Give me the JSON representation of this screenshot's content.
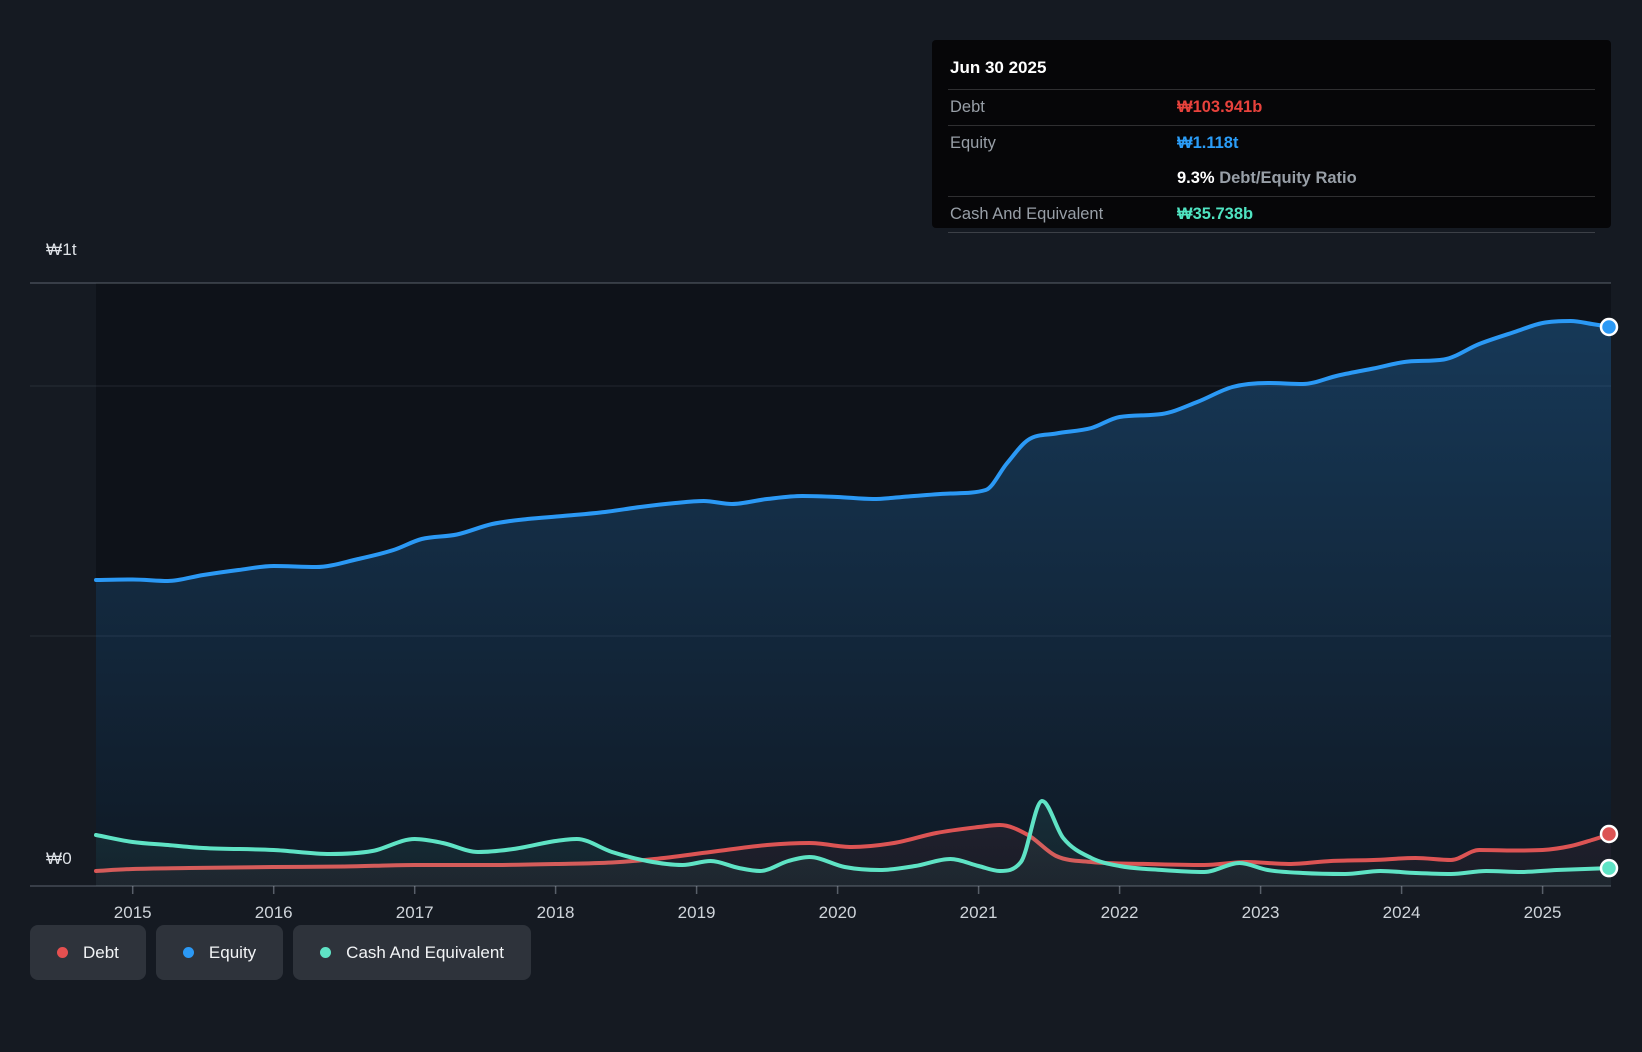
{
  "y_axis": {
    "labels": [
      {
        "text": "₩1t"
      },
      {
        "text": "₩0"
      }
    ]
  },
  "tooltip": {
    "title": "Jun 30 2025",
    "rows": {
      "debt": {
        "label": "Debt",
        "value": "₩103.941b",
        "value_color": "#e8423c"
      },
      "equity": {
        "label": "Equity",
        "value": "₩1.118t",
        "value_color": "#2b9df8"
      },
      "ratio": {
        "bold": "9.3%",
        "rest": " Debt/Equity Ratio"
      },
      "cash": {
        "label": "Cash And Equivalent",
        "value": "₩35.738b",
        "value_color": "#4fe3c1"
      }
    }
  },
  "legend": [
    {
      "label": "Debt",
      "color": "#e55050"
    },
    {
      "label": "Equity",
      "color": "#2b99f5"
    },
    {
      "label": "Cash And Equivalent",
      "color": "#5fe3c5"
    }
  ],
  "chart_data": {
    "type": "area",
    "title": "Debt to Equity history (KRW)",
    "x_tick_labels": [
      "2015",
      "2016",
      "2017",
      "2018",
      "2019",
      "2020",
      "2021",
      "2022",
      "2023",
      "2024",
      "2025"
    ],
    "x_tick_years": [
      2015,
      2016,
      2017,
      2018,
      2019,
      2020,
      2021,
      2022,
      2023,
      2024,
      2025
    ],
    "x_range_years": [
      2014.74,
      2025.485
    ],
    "ylim_trillions": [
      0,
      1.206
    ],
    "gridline_values_trillions": [
      0.5,
      1.0
    ],
    "grid_on": true,
    "legend_position": "bottom-left",
    "units": "KRW trillions",
    "series": [
      {
        "name": "Equity",
        "color": "#2b99f5",
        "points": [
          [
            2014.74,
            0.612
          ],
          [
            2015.0,
            0.613
          ],
          [
            2015.25,
            0.61
          ],
          [
            2015.5,
            0.622
          ],
          [
            2015.75,
            0.632
          ],
          [
            2016.0,
            0.64
          ],
          [
            2016.3,
            0.638
          ],
          [
            2016.6,
            0.654
          ],
          [
            2016.85,
            0.672
          ],
          [
            2017.05,
            0.694
          ],
          [
            2017.3,
            0.703
          ],
          [
            2017.55,
            0.724
          ],
          [
            2017.8,
            0.734
          ],
          [
            2018.05,
            0.74
          ],
          [
            2018.35,
            0.748
          ],
          [
            2018.6,
            0.758
          ],
          [
            2018.85,
            0.766
          ],
          [
            2019.05,
            0.77
          ],
          [
            2019.25,
            0.764
          ],
          [
            2019.5,
            0.774
          ],
          [
            2019.75,
            0.78
          ],
          [
            2020.0,
            0.778
          ],
          [
            2020.25,
            0.774
          ],
          [
            2020.5,
            0.779
          ],
          [
            2020.8,
            0.785
          ],
          [
            2021.05,
            0.792
          ],
          [
            2021.2,
            0.845
          ],
          [
            2021.35,
            0.892
          ],
          [
            2021.55,
            0.905
          ],
          [
            2021.8,
            0.916
          ],
          [
            2022.0,
            0.938
          ],
          [
            2022.3,
            0.944
          ],
          [
            2022.55,
            0.968
          ],
          [
            2022.8,
            0.998
          ],
          [
            2023.05,
            1.006
          ],
          [
            2023.3,
            1.004
          ],
          [
            2023.55,
            1.021
          ],
          [
            2023.8,
            1.035
          ],
          [
            2024.05,
            1.049
          ],
          [
            2024.3,
            1.053
          ],
          [
            2024.55,
            1.084
          ],
          [
            2024.8,
            1.108
          ],
          [
            2025.0,
            1.126
          ],
          [
            2025.2,
            1.13
          ],
          [
            2025.35,
            1.124
          ],
          [
            2025.485,
            1.118
          ]
        ],
        "end_value_label": "₩1.118t"
      },
      {
        "name": "Debt",
        "color": "#dc5454",
        "points": [
          [
            2014.74,
            0.03
          ],
          [
            2015.0,
            0.034
          ],
          [
            2015.4,
            0.036
          ],
          [
            2016.0,
            0.038
          ],
          [
            2016.5,
            0.039
          ],
          [
            2017.0,
            0.042
          ],
          [
            2017.5,
            0.042
          ],
          [
            2018.0,
            0.044
          ],
          [
            2018.4,
            0.047
          ],
          [
            2018.7,
            0.054
          ],
          [
            2019.1,
            0.068
          ],
          [
            2019.5,
            0.082
          ],
          [
            2019.8,
            0.086
          ],
          [
            2020.1,
            0.078
          ],
          [
            2020.4,
            0.086
          ],
          [
            2020.7,
            0.106
          ],
          [
            2021.0,
            0.118
          ],
          [
            2021.15,
            0.122
          ],
          [
            2021.35,
            0.102
          ],
          [
            2021.55,
            0.06
          ],
          [
            2021.8,
            0.048
          ],
          [
            2022.2,
            0.044
          ],
          [
            2022.6,
            0.042
          ],
          [
            2022.9,
            0.048
          ],
          [
            2023.2,
            0.044
          ],
          [
            2023.5,
            0.05
          ],
          [
            2023.8,
            0.052
          ],
          [
            2024.1,
            0.056
          ],
          [
            2024.35,
            0.052
          ],
          [
            2024.55,
            0.072
          ],
          [
            2024.8,
            0.071
          ],
          [
            2025.0,
            0.072
          ],
          [
            2025.2,
            0.08
          ],
          [
            2025.35,
            0.092
          ],
          [
            2025.485,
            0.104
          ]
        ],
        "end_value_label": "₩103.941b"
      },
      {
        "name": "Cash And Equivalent",
        "color": "#5fe3c5",
        "points": [
          [
            2014.74,
            0.102
          ],
          [
            2015.0,
            0.088
          ],
          [
            2015.25,
            0.082
          ],
          [
            2015.5,
            0.076
          ],
          [
            2016.0,
            0.072
          ],
          [
            2016.4,
            0.064
          ],
          [
            2016.7,
            0.07
          ],
          [
            2017.0,
            0.094
          ],
          [
            2017.2,
            0.086
          ],
          [
            2017.45,
            0.068
          ],
          [
            2017.7,
            0.074
          ],
          [
            2018.0,
            0.09
          ],
          [
            2018.15,
            0.094
          ],
          [
            2018.4,
            0.068
          ],
          [
            2018.65,
            0.05
          ],
          [
            2018.9,
            0.042
          ],
          [
            2019.1,
            0.05
          ],
          [
            2019.3,
            0.036
          ],
          [
            2019.45,
            0.03
          ],
          [
            2019.65,
            0.05
          ],
          [
            2019.8,
            0.058
          ],
          [
            2020.05,
            0.038
          ],
          [
            2020.3,
            0.032
          ],
          [
            2020.55,
            0.04
          ],
          [
            2020.8,
            0.054
          ],
          [
            2021.0,
            0.04
          ],
          [
            2021.15,
            0.03
          ],
          [
            2021.3,
            0.048
          ],
          [
            2021.45,
            0.17
          ],
          [
            2021.6,
            0.096
          ],
          [
            2021.8,
            0.056
          ],
          [
            2022.0,
            0.04
          ],
          [
            2022.3,
            0.032
          ],
          [
            2022.6,
            0.028
          ],
          [
            2022.85,
            0.046
          ],
          [
            2023.05,
            0.032
          ],
          [
            2023.3,
            0.026
          ],
          [
            2023.6,
            0.024
          ],
          [
            2023.85,
            0.03
          ],
          [
            2024.1,
            0.026
          ],
          [
            2024.35,
            0.024
          ],
          [
            2024.6,
            0.03
          ],
          [
            2024.85,
            0.028
          ],
          [
            2025.1,
            0.032
          ],
          [
            2025.3,
            0.034
          ],
          [
            2025.485,
            0.0357
          ]
        ],
        "end_value_label": "₩35.738b"
      }
    ]
  }
}
